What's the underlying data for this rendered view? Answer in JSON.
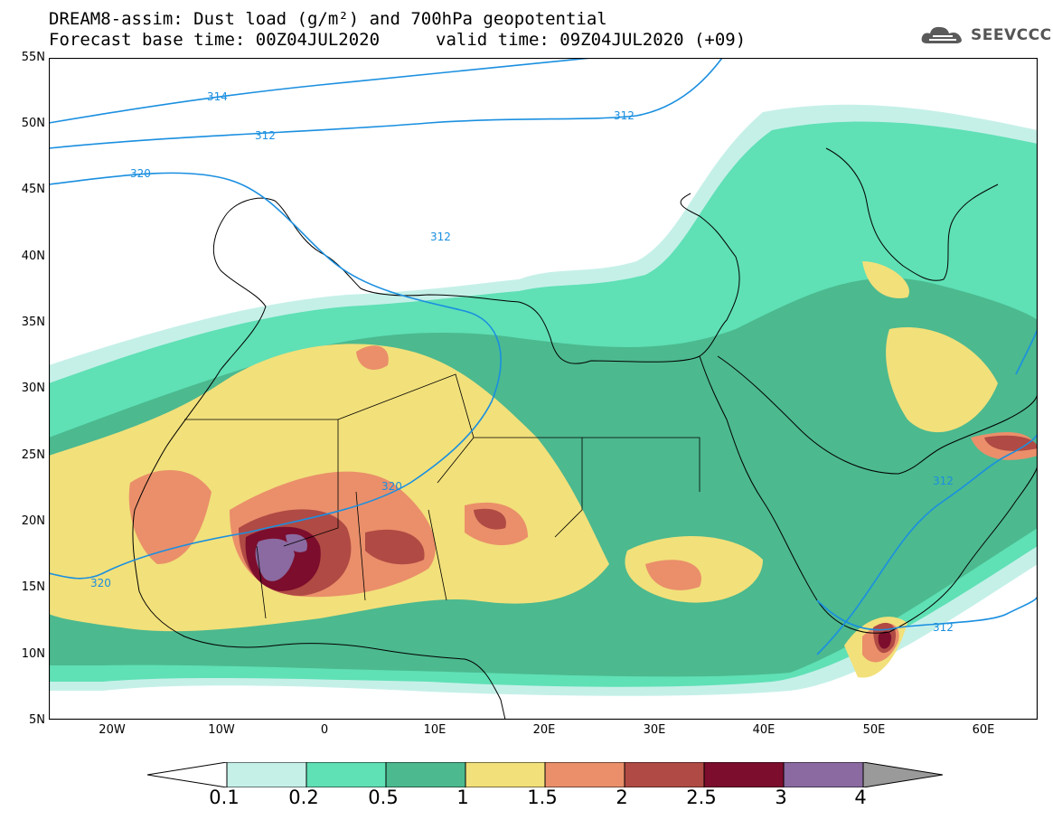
{
  "header": {
    "title_line1": "DREAM8-assim: Dust load (g/m²) and 700hPa geopotential",
    "title_line2": "Forecast base time: 00Z04JUL2020",
    "valid_time": "valid time: 09Z04JUL2020 (+09)"
  },
  "logo": {
    "text": "SEEVCCC",
    "icon": "cloud-icon"
  },
  "map": {
    "lon_range": [
      -25,
      65
    ],
    "lat_range": [
      5,
      55
    ],
    "lat_labels": [
      "55N",
      "50N",
      "45N",
      "40N",
      "35N",
      "30N",
      "25N",
      "20N",
      "15N",
      "10N",
      "5N"
    ],
    "lon_labels": [
      "20W",
      "10W",
      "0",
      "10E",
      "20E",
      "30E",
      "40E",
      "50E",
      "60E"
    ],
    "contour_labels": [
      "314",
      "312",
      "312",
      "320",
      "312",
      "320",
      "320",
      "312",
      "312"
    ]
  },
  "colorbar": {
    "labels": [
      "0.1",
      "0.2",
      "0.5",
      "1",
      "1.5",
      "2",
      "2.5",
      "3",
      "4"
    ],
    "colors": [
      "#c5f0e8",
      "#5fe0b5",
      "#4cb98f",
      "#f2e07a",
      "#ea8f6a",
      "#b04a44",
      "#7c0d2d",
      "#8a6aa0"
    ],
    "under_color": "#ffffff",
    "over_color": "#9a9a9a"
  }
}
